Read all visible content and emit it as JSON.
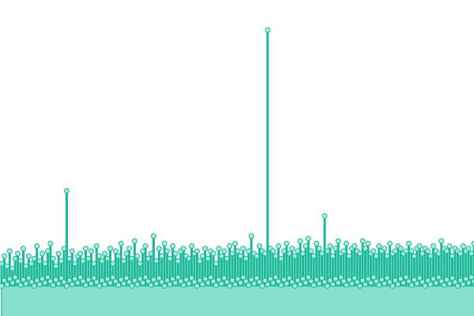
{
  "chart_data": {
    "type": "area",
    "subtype": "lollipop-area",
    "title": "",
    "xlabel": "",
    "ylabel": "",
    "axes_visible": false,
    "grid": false,
    "legend": "none",
    "ylim": [
      0,
      1
    ],
    "colors": {
      "line": "#1bb899",
      "area_fill": "#86e0cc",
      "area_stroke": "#2cc4a4",
      "marker_fill": "#a9ecdd",
      "marker_stroke": "#1bb899",
      "background": "#ffffff"
    },
    "series": [
      {
        "values": [
          0.07,
          0.1,
          0.06,
          0.12,
          0.05,
          0.09,
          0.11,
          0.08,
          0.13,
          0.06,
          0.1,
          0.07,
          0.09,
          0.14,
          0.08,
          0.11,
          0.07,
          0.12,
          0.15,
          0.09,
          0.06,
          0.11,
          0.08,
          0.13,
          0.36,
          0.09,
          0.12,
          0.07,
          0.1,
          0.11,
          0.08,
          0.13,
          0.09,
          0.12,
          0.07,
          0.14,
          0.1,
          0.08,
          0.11,
          0.09,
          0.13,
          0.07,
          0.12,
          0.1,
          0.15,
          0.08,
          0.11,
          0.13,
          0.09,
          0.16,
          0.1,
          0.07,
          0.12,
          0.14,
          0.09,
          0.11,
          0.18,
          0.08,
          0.13,
          0.1,
          0.15,
          0.12,
          0.09,
          0.14,
          0.11,
          0.08,
          0.12,
          0.13,
          0.1,
          0.09,
          0.14,
          0.11,
          0.12,
          0.08,
          0.1,
          0.13,
          0.09,
          0.12,
          0.11,
          0.07,
          0.13,
          0.1,
          0.12,
          0.09,
          0.14,
          0.11,
          0.15,
          0.12,
          0.1,
          0.13,
          0.09,
          0.12,
          0.18,
          0.11,
          0.1,
          0.14,
          0.12,
          0.11,
          1.0,
          0.13,
          0.12,
          0.1,
          0.14,
          0.09,
          0.12,
          0.15,
          0.11,
          0.13,
          0.1,
          0.12,
          0.16,
          0.11,
          0.14,
          0.17,
          0.12,
          0.1,
          0.15,
          0.13,
          0.11,
          0.26,
          0.12,
          0.14,
          0.1,
          0.13,
          0.16,
          0.11,
          0.12,
          0.15,
          0.1,
          0.13,
          0.14,
          0.12,
          0.11,
          0.16,
          0.13,
          0.15,
          0.11,
          0.12,
          0.1,
          0.14,
          0.12,
          0.13,
          0.1,
          0.15,
          0.11,
          0.12,
          0.14,
          0.13,
          0.11,
          0.12,
          0.15,
          0.12,
          0.1,
          0.13,
          0.14,
          0.11,
          0.13,
          0.12,
          0.1,
          0.14,
          0.12,
          0.11,
          0.16,
          0.13,
          0.12,
          0.14,
          0.1,
          0.13,
          0.12,
          0.11,
          0.14,
          0.12,
          0.13,
          0.11,
          0.15
        ]
      }
    ]
  }
}
